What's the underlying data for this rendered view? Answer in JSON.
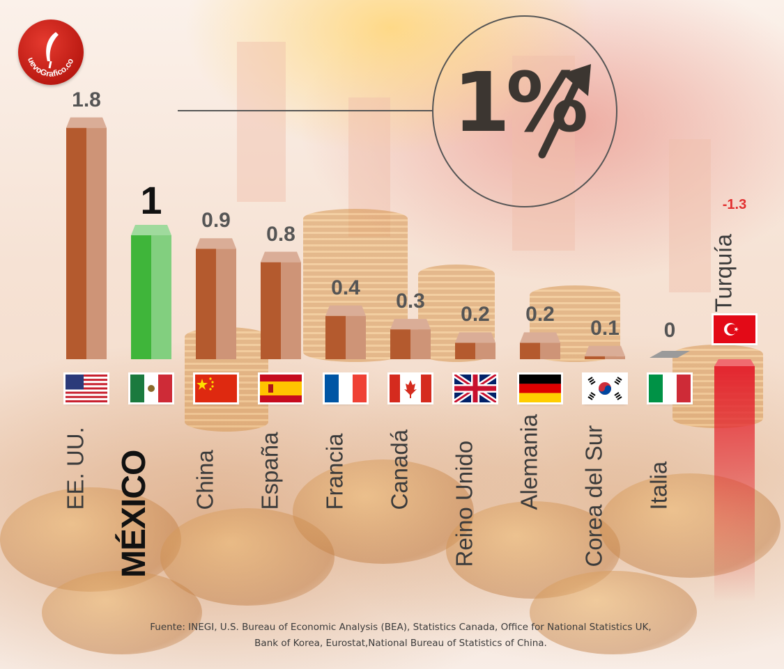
{
  "logo": {
    "text": "NuevoGrafico.com"
  },
  "highlight": {
    "value": "1%",
    "icon": "up-arrow-icon"
  },
  "chart_data": {
    "type": "bar",
    "categories": [
      "EE. UU.",
      "MÉXICO",
      "China",
      "España",
      "Francia",
      "Canadá",
      "Reino Unido",
      "Alemania",
      "Corea del Sur",
      "Italia",
      "Turquía"
    ],
    "values": [
      1.8,
      1,
      0.9,
      0.8,
      0.4,
      0.3,
      0.2,
      0.2,
      0.1,
      0,
      -1.3
    ],
    "value_labels": [
      "1.8",
      "1",
      "0.9",
      "0.8",
      "0.4",
      "0.3",
      "0.2",
      "0.2",
      "0.1",
      "0",
      "-1.3"
    ],
    "highlighted_category": "MÉXICO",
    "flags": [
      "us-flag-icon",
      "mexico-flag-icon",
      "china-flag-icon",
      "spain-flag-icon",
      "france-flag-icon",
      "canada-flag-icon",
      "uk-flag-icon",
      "germany-flag-icon",
      "south-korea-flag-icon",
      "italy-flag-icon",
      "turkey-flag-icon"
    ],
    "colors": {
      "bar": "#b45a2e",
      "highlight": "#3fb53a",
      "negative": "#e3262f",
      "zero": "#9a9a9a"
    }
  },
  "source": {
    "line1": "Fuente: INEGI, U.S. Bureau of Economic Analysis (BEA), Statistics Canada, Office for National Statistics UK,",
    "line2": "Bank of Korea, Eurostat,National Bureau of Statistics of China."
  }
}
